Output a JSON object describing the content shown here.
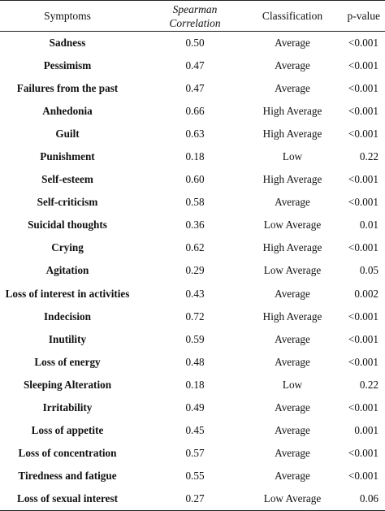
{
  "headers": {
    "symptoms": "Symptoms",
    "spearman_line1": "Spearman",
    "spearman_line2": "Correlation",
    "classification": "Classification",
    "pvalue": "p-value"
  },
  "rows": [
    {
      "symptom": "Sadness",
      "correlation": "0.50",
      "classification": "Average",
      "p": "<0.001"
    },
    {
      "symptom": "Pessimism",
      "correlation": "0.47",
      "classification": "Average",
      "p": "<0.001"
    },
    {
      "symptom": "Failures from the past",
      "correlation": "0.47",
      "classification": "Average",
      "p": "<0.001"
    },
    {
      "symptom": "Anhedonia",
      "correlation": "0.66",
      "classification": "High Average",
      "p": "<0.001"
    },
    {
      "symptom": "Guilt",
      "correlation": "0.63",
      "classification": "High Average",
      "p": "<0.001"
    },
    {
      "symptom": "Punishment",
      "correlation": "0.18",
      "classification": "Low",
      "p": "0.22"
    },
    {
      "symptom": "Self-esteem",
      "correlation": "0.60",
      "classification": "High Average",
      "p": "<0.001"
    },
    {
      "symptom": "Self-criticism",
      "correlation": "0.58",
      "classification": "Average",
      "p": "<0.001"
    },
    {
      "symptom": "Suicidal thoughts",
      "correlation": "0.36",
      "classification": "Low Average",
      "p": "0.01"
    },
    {
      "symptom": "Crying",
      "correlation": "0.62",
      "classification": "High Average",
      "p": "<0.001"
    },
    {
      "symptom": "Agitation",
      "correlation": "0.29",
      "classification": "Low Average",
      "p": "0.05"
    },
    {
      "symptom": "Loss of interest in activities",
      "correlation": "0.43",
      "classification": "Average",
      "p": "0.002"
    },
    {
      "symptom": "Indecision",
      "correlation": "0.72",
      "classification": "High Average",
      "p": "<0.001"
    },
    {
      "symptom": "Inutility",
      "correlation": "0.59",
      "classification": "Average",
      "p": "<0.001"
    },
    {
      "symptom": "Loss of energy",
      "correlation": "0.48",
      "classification": "Average",
      "p": "<0.001"
    },
    {
      "symptom": "Sleeping Alteration",
      "correlation": "0.18",
      "classification": "Low",
      "p": "0.22"
    },
    {
      "symptom": "Irritability",
      "correlation": "0.49",
      "classification": "Average",
      "p": "<0.001"
    },
    {
      "symptom": "Loss of appetite",
      "correlation": "0.45",
      "classification": "Average",
      "p": "0.001"
    },
    {
      "symptom": "Loss of concentration",
      "correlation": "0.57",
      "classification": "Average",
      "p": "<0.001"
    },
    {
      "symptom": "Tiredness and fatigue",
      "correlation": "0.55",
      "classification": "Average",
      "p": "<0.001"
    },
    {
      "symptom": "Loss of sexual interest",
      "correlation": "0.27",
      "classification": "Low Average",
      "p": "0.06"
    }
  ]
}
